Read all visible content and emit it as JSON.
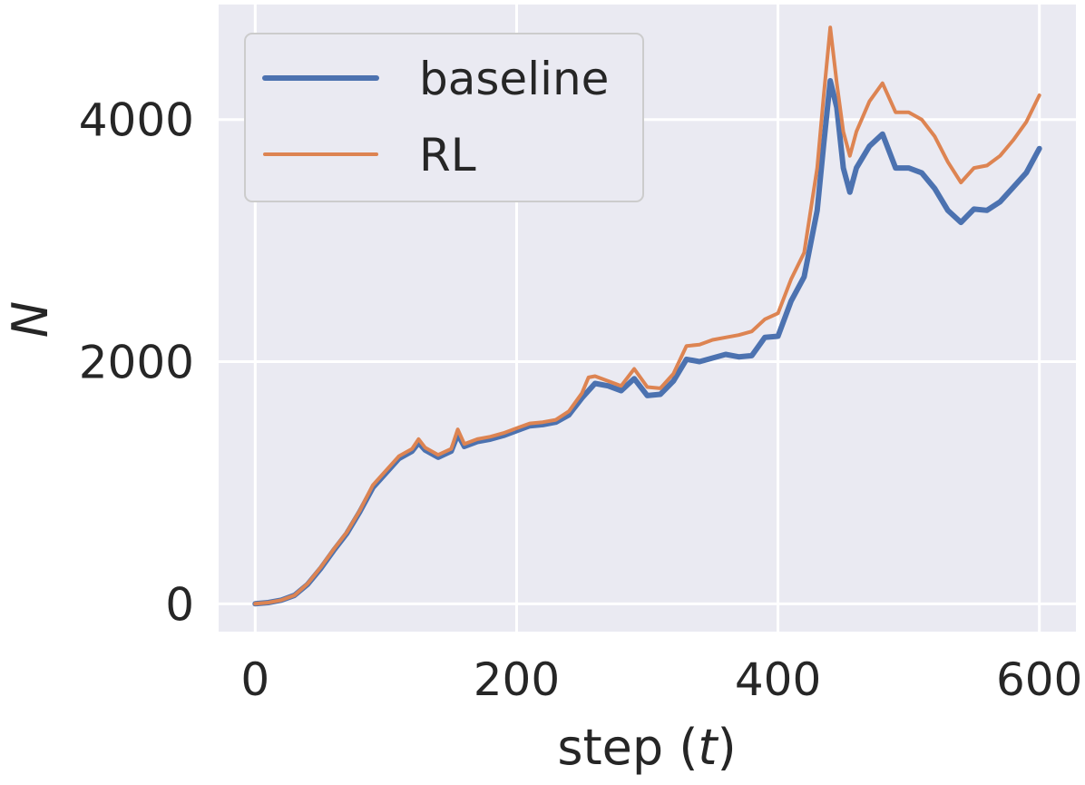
{
  "chart_data": {
    "type": "line",
    "xlabel": "step (",
    "xlabel_var": "t",
    "xlabel_close": ")",
    "ylabel": "N",
    "xlim": [
      -28,
      628
    ],
    "ylim": [
      -230,
      4950
    ],
    "xticks": [
      0,
      200,
      400,
      600
    ],
    "yticks": [
      0,
      2000,
      4000
    ],
    "xtick_labels": [
      "0",
      "200",
      "400",
      "600"
    ],
    "ytick_labels": [
      "0",
      "2000",
      "4000"
    ],
    "grid": true,
    "legend_position": "top-left",
    "series": [
      {
        "name": "baseline",
        "color": "#4c72b0",
        "points": [
          [
            0,
            0
          ],
          [
            10,
            10
          ],
          [
            20,
            30
          ],
          [
            30,
            70
          ],
          [
            40,
            160
          ],
          [
            50,
            290
          ],
          [
            60,
            440
          ],
          [
            70,
            580
          ],
          [
            80,
            760
          ],
          [
            90,
            960
          ],
          [
            100,
            1080
          ],
          [
            110,
            1200
          ],
          [
            120,
            1260
          ],
          [
            125,
            1330
          ],
          [
            130,
            1270
          ],
          [
            140,
            1210
          ],
          [
            150,
            1260
          ],
          [
            155,
            1400
          ],
          [
            160,
            1300
          ],
          [
            170,
            1340
          ],
          [
            180,
            1360
          ],
          [
            190,
            1390
          ],
          [
            200,
            1430
          ],
          [
            210,
            1470
          ],
          [
            220,
            1480
          ],
          [
            230,
            1500
          ],
          [
            240,
            1560
          ],
          [
            250,
            1700
          ],
          [
            255,
            1760
          ],
          [
            260,
            1820
          ],
          [
            270,
            1800
          ],
          [
            280,
            1760
          ],
          [
            290,
            1860
          ],
          [
            300,
            1720
          ],
          [
            310,
            1730
          ],
          [
            320,
            1840
          ],
          [
            330,
            2020
          ],
          [
            340,
            2000
          ],
          [
            350,
            2030
          ],
          [
            360,
            2060
          ],
          [
            370,
            2040
          ],
          [
            380,
            2050
          ],
          [
            390,
            2200
          ],
          [
            400,
            2210
          ],
          [
            410,
            2500
          ],
          [
            420,
            2700
          ],
          [
            430,
            3250
          ],
          [
            435,
            3800
          ],
          [
            440,
            4320
          ],
          [
            445,
            4100
          ],
          [
            450,
            3600
          ],
          [
            455,
            3400
          ],
          [
            460,
            3600
          ],
          [
            470,
            3780
          ],
          [
            480,
            3880
          ],
          [
            490,
            3600
          ],
          [
            500,
            3600
          ],
          [
            510,
            3560
          ],
          [
            520,
            3430
          ],
          [
            530,
            3250
          ],
          [
            540,
            3150
          ],
          [
            550,
            3260
          ],
          [
            560,
            3250
          ],
          [
            570,
            3320
          ],
          [
            580,
            3440
          ],
          [
            590,
            3560
          ],
          [
            600,
            3760
          ]
        ]
      },
      {
        "name": "RL",
        "color": "#dd8452",
        "points": [
          [
            0,
            0
          ],
          [
            10,
            10
          ],
          [
            20,
            30
          ],
          [
            30,
            70
          ],
          [
            40,
            165
          ],
          [
            50,
            300
          ],
          [
            60,
            450
          ],
          [
            70,
            590
          ],
          [
            80,
            770
          ],
          [
            90,
            980
          ],
          [
            100,
            1100
          ],
          [
            110,
            1220
          ],
          [
            120,
            1280
          ],
          [
            125,
            1360
          ],
          [
            130,
            1290
          ],
          [
            140,
            1230
          ],
          [
            150,
            1280
          ],
          [
            155,
            1440
          ],
          [
            160,
            1320
          ],
          [
            170,
            1360
          ],
          [
            180,
            1380
          ],
          [
            190,
            1410
          ],
          [
            200,
            1450
          ],
          [
            210,
            1490
          ],
          [
            220,
            1500
          ],
          [
            230,
            1520
          ],
          [
            240,
            1590
          ],
          [
            250,
            1740
          ],
          [
            255,
            1870
          ],
          [
            260,
            1880
          ],
          [
            270,
            1840
          ],
          [
            280,
            1800
          ],
          [
            290,
            1940
          ],
          [
            300,
            1790
          ],
          [
            310,
            1780
          ],
          [
            320,
            1900
          ],
          [
            330,
            2130
          ],
          [
            340,
            2140
          ],
          [
            350,
            2180
          ],
          [
            360,
            2200
          ],
          [
            370,
            2220
          ],
          [
            380,
            2250
          ],
          [
            390,
            2350
          ],
          [
            400,
            2400
          ],
          [
            410,
            2680
          ],
          [
            420,
            2900
          ],
          [
            430,
            3600
          ],
          [
            435,
            4200
          ],
          [
            440,
            4760
          ],
          [
            445,
            4300
          ],
          [
            450,
            3900
          ],
          [
            455,
            3700
          ],
          [
            460,
            3900
          ],
          [
            470,
            4150
          ],
          [
            480,
            4300
          ],
          [
            490,
            4060
          ],
          [
            500,
            4060
          ],
          [
            510,
            4000
          ],
          [
            520,
            3860
          ],
          [
            530,
            3650
          ],
          [
            540,
            3480
          ],
          [
            550,
            3600
          ],
          [
            560,
            3620
          ],
          [
            570,
            3700
          ],
          [
            580,
            3830
          ],
          [
            590,
            3980
          ],
          [
            600,
            4200
          ]
        ]
      }
    ]
  }
}
